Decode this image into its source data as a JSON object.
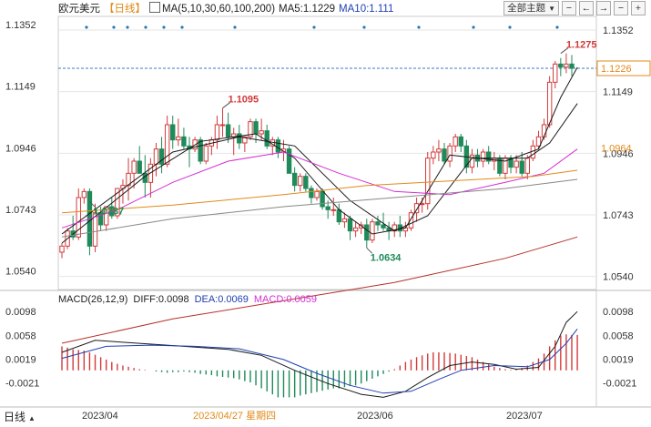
{
  "header": {
    "symbol": "欧元美元",
    "period": "【日线】",
    "ma_params": "MA(5,10,30,60,100,200)",
    "ma5": "MA5:1.1229",
    "ma10": "MA10:1.111",
    "theme_button": "全部主题",
    "colors": {
      "ma5": "#1a1a1a",
      "ma10": "#1a1a1a",
      "ma30": "#d52dd5",
      "ma60": "#e08a1a",
      "ma100": "#888888",
      "ma200": "#b5302a",
      "up": "#d23a3a",
      "down": "#1f8a5a"
    }
  },
  "macd_header": {
    "params": "MACD(26,12,9)",
    "dif": "DIFF:0.0098",
    "dea": "DEA:0.0069",
    "macd": "MACD:0.0059"
  },
  "footer": {
    "period_label": "日线",
    "date_labels": [
      "2023/04",
      "2023/04/27 星期四",
      "2023/06",
      "2023/07"
    ]
  },
  "chart_data": [
    {
      "type": "candlestick",
      "title": "欧元美元 日线",
      "y_ticks": [
        "1.1352",
        "1.1149",
        "1.0946",
        "1.0743",
        "1.0540"
      ],
      "ylim": [
        1.0497,
        1.1397
      ],
      "price_tag_last": "1.1226",
      "price_tag_level": "1.0964",
      "annotations": [
        {
          "text": "1.1095",
          "date": "2023-04-26",
          "value": 1.1095,
          "color": "#d23a3a"
        },
        {
          "text": "1.0787",
          "date": "2023-03-15",
          "value": 1.0787,
          "color": "#1f8a5a"
        },
        {
          "text": "1.0634",
          "date": "2023-05-31",
          "value": 1.0634,
          "color": "#1f8a5a"
        },
        {
          "text": "1.1275",
          "date": "2023-07-18",
          "value": 1.1275,
          "color": "#d23a3a"
        }
      ],
      "ohlc": [
        [
          1.062,
          1.065,
          1.06,
          1.064
        ],
        [
          1.064,
          1.07,
          1.063,
          1.069
        ],
        [
          1.069,
          1.074,
          1.066,
          1.067
        ],
        [
          1.067,
          1.083,
          1.066,
          1.08
        ],
        [
          1.08,
          1.083,
          1.078,
          1.082
        ],
        [
          1.082,
          1.083,
          1.061,
          1.064
        ],
        [
          1.064,
          1.078,
          1.062,
          1.075
        ],
        [
          1.075,
          1.077,
          1.069,
          1.071
        ],
        [
          1.071,
          1.077,
          1.069,
          1.077
        ],
        [
          1.077,
          1.08,
          1.073,
          1.074
        ],
        [
          1.074,
          1.083,
          1.073,
          1.083
        ],
        [
          1.083,
          1.086,
          1.078,
          1.084
        ],
        [
          1.084,
          1.093,
          1.079,
          1.088
        ],
        [
          1.088,
          1.093,
          1.083,
          1.092
        ],
        [
          1.092,
          1.097,
          1.088,
          1.088
        ],
        [
          1.088,
          1.094,
          1.08,
          1.085
        ],
        [
          1.085,
          1.093,
          1.08,
          1.091
        ],
        [
          1.091,
          1.098,
          1.087,
          1.096
        ],
        [
          1.096,
          1.1,
          1.088,
          1.091
        ],
        [
          1.091,
          1.107,
          1.09,
          1.104
        ],
        [
          1.104,
          1.107,
          1.096,
          1.099
        ],
        [
          1.099,
          1.106,
          1.097,
          1.1
        ],
        [
          1.1,
          1.103,
          1.096,
          1.097
        ],
        [
          1.097,
          1.1,
          1.09,
          1.096
        ],
        [
          1.096,
          1.1,
          1.095,
          1.099
        ],
        [
          1.099,
          1.1,
          1.091,
          1.092
        ],
        [
          1.092,
          1.098,
          1.091,
          1.097
        ],
        [
          1.097,
          1.1,
          1.094,
          1.099
        ],
        [
          1.099,
          1.107,
          1.096,
          1.104
        ],
        [
          1.104,
          1.1095,
          1.1,
          1.104
        ],
        [
          1.104,
          1.108,
          1.098,
          1.1
        ],
        [
          1.1,
          1.103,
          1.094,
          1.101
        ],
        [
          1.101,
          1.104,
          1.096,
          1.098
        ],
        [
          1.098,
          1.1,
          1.095,
          1.1
        ],
        [
          1.1,
          1.106,
          1.099,
          1.105
        ],
        [
          1.105,
          1.106,
          1.098,
          1.101
        ],
        [
          1.101,
          1.106,
          1.099,
          1.102
        ],
        [
          1.102,
          1.104,
          1.096,
          1.097
        ],
        [
          1.097,
          1.1,
          1.094,
          1.099
        ],
        [
          1.099,
          1.1,
          1.093,
          1.095
        ],
        [
          1.095,
          1.099,
          1.092,
          1.096
        ],
        [
          1.096,
          1.097,
          1.088,
          1.088
        ],
        [
          1.088,
          1.09,
          1.082,
          1.084
        ],
        [
          1.084,
          1.088,
          1.082,
          1.087
        ],
        [
          1.087,
          1.088,
          1.082,
          1.083
        ],
        [
          1.083,
          1.084,
          1.078,
          1.08
        ],
        [
          1.08,
          1.083,
          1.079,
          1.082
        ],
        [
          1.082,
          1.083,
          1.076,
          1.077
        ],
        [
          1.077,
          1.079,
          1.073,
          1.076
        ],
        [
          1.076,
          1.08,
          1.074,
          1.076
        ],
        [
          1.076,
          1.078,
          1.071,
          1.072
        ],
        [
          1.072,
          1.075,
          1.07,
          1.073
        ],
        [
          1.073,
          1.074,
          1.066,
          1.069
        ],
        [
          1.069,
          1.072,
          1.067,
          1.07
        ],
        [
          1.07,
          1.072,
          1.068,
          1.071
        ],
        [
          1.071,
          1.073,
          1.0634,
          1.066
        ],
        [
          1.066,
          1.073,
          1.065,
          1.072
        ],
        [
          1.072,
          1.074,
          1.069,
          1.071
        ],
        [
          1.071,
          1.075,
          1.069,
          1.07
        ],
        [
          1.07,
          1.072,
          1.066,
          1.069
        ],
        [
          1.069,
          1.072,
          1.067,
          1.071
        ],
        [
          1.071,
          1.074,
          1.067,
          1.069
        ],
        [
          1.069,
          1.072,
          1.067,
          1.07
        ],
        [
          1.07,
          1.076,
          1.069,
          1.075
        ],
        [
          1.075,
          1.08,
          1.072,
          1.078
        ],
        [
          1.078,
          1.08,
          1.075,
          1.078
        ],
        [
          1.078,
          1.095,
          1.076,
          1.093
        ],
        [
          1.093,
          1.097,
          1.091,
          1.095
        ],
        [
          1.095,
          1.099,
          1.092,
          1.096
        ],
        [
          1.096,
          1.098,
          1.091,
          1.092
        ],
        [
          1.092,
          1.098,
          1.09,
          1.097
        ],
        [
          1.097,
          1.101,
          1.095,
          1.1
        ],
        [
          1.1,
          1.101,
          1.095,
          1.097
        ],
        [
          1.097,
          1.099,
          1.088,
          1.09
        ],
        [
          1.09,
          1.096,
          1.088,
          1.094
        ],
        [
          1.094,
          1.096,
          1.09,
          1.092
        ],
        [
          1.092,
          1.096,
          1.09,
          1.095
        ],
        [
          1.095,
          1.097,
          1.091,
          1.092
        ],
        [
          1.092,
          1.095,
          1.089,
          1.093
        ],
        [
          1.093,
          1.094,
          1.087,
          1.088
        ],
        [
          1.088,
          1.094,
          1.086,
          1.093
        ],
        [
          1.093,
          1.094,
          1.088,
          1.09
        ],
        [
          1.09,
          1.094,
          1.088,
          1.092
        ],
        [
          1.092,
          1.095,
          1.087,
          1.088
        ],
        [
          1.088,
          1.094,
          1.086,
          1.093
        ],
        [
          1.093,
          1.099,
          1.092,
          1.097
        ],
        [
          1.097,
          1.102,
          1.096,
          1.1
        ],
        [
          1.1,
          1.106,
          1.099,
          1.104
        ],
        [
          1.104,
          1.12,
          1.103,
          1.118
        ],
        [
          1.118,
          1.125,
          1.116,
          1.124
        ],
        [
          1.124,
          1.126,
          1.12,
          1.123
        ],
        [
          1.123,
          1.1275,
          1.121,
          1.124
        ],
        [
          1.124,
          1.127,
          1.12,
          1.1226
        ]
      ],
      "ma_series": [
        {
          "name": "MA5",
          "color": "#1a1a1a",
          "points": [
            [
              0,
              1.065
            ],
            [
              15,
              1.087
            ],
            [
              25,
              1.0985
            ],
            [
              35,
              1.101
            ],
            [
              42,
              1.093
            ],
            [
              50,
              1.076
            ],
            [
              56,
              1.068
            ],
            [
              62,
              1.07
            ],
            [
              70,
              1.094
            ],
            [
              80,
              1.092
            ],
            [
              86,
              1.096
            ],
            [
              90,
              1.113
            ],
            [
              93,
              1.1229
            ]
          ]
        },
        {
          "name": "MA10",
          "color": "#1a1a1a",
          "points": [
            [
              0,
              1.068
            ],
            [
              20,
              1.095
            ],
            [
              32,
              1.1
            ],
            [
              42,
              1.097
            ],
            [
              52,
              1.079
            ],
            [
              60,
              1.069
            ],
            [
              66,
              1.074
            ],
            [
              74,
              1.093
            ],
            [
              84,
              1.093
            ],
            [
              88,
              1.098
            ],
            [
              93,
              1.111
            ]
          ]
        },
        {
          "name": "MA30",
          "color": "#d52dd5",
          "points": [
            [
              0,
              1.07
            ],
            [
              10,
              1.076
            ],
            [
              20,
              1.085
            ],
            [
              30,
              1.092
            ],
            [
              40,
              1.095
            ],
            [
              50,
              1.088
            ],
            [
              60,
              1.082
            ],
            [
              70,
              1.081
            ],
            [
              80,
              1.085
            ],
            [
              87,
              1.088
            ],
            [
              93,
              1.096
            ]
          ]
        },
        {
          "name": "MA60",
          "color": "#e08a1a",
          "points": [
            [
              0,
              1.075
            ],
            [
              20,
              1.0775
            ],
            [
              40,
              1.081
            ],
            [
              55,
              1.084
            ],
            [
              70,
              1.0855
            ],
            [
              85,
              1.087
            ],
            [
              93,
              1.089
            ]
          ]
        },
        {
          "name": "MA100",
          "color": "#888888",
          "points": [
            [
              0,
              1.067
            ],
            [
              20,
              1.073
            ],
            [
              40,
              1.077
            ],
            [
              60,
              1.08
            ],
            [
              80,
              1.083
            ],
            [
              93,
              1.086
            ]
          ]
        },
        {
          "name": "MA200",
          "color": "#b5302a",
          "points": [
            [
              0,
              1.032
            ],
            [
              20,
              1.04
            ],
            [
              40,
              1.046
            ],
            [
              60,
              1.052
            ],
            [
              80,
              1.06
            ],
            [
              93,
              1.067
            ]
          ]
        }
      ]
    },
    {
      "type": "bar",
      "title": "MACD(26,12,9)",
      "y_ticks": [
        "0.0098",
        "0.0058",
        "0.0019",
        "-0.0021"
      ],
      "ylim": [
        -0.0058,
        0.0112
      ],
      "histogram": [
        0.004,
        0.0038,
        0.0035,
        0.0034,
        0.0033,
        0.003,
        0.0026,
        0.0022,
        0.0018,
        0.0014,
        0.0011,
        0.0008,
        0.0006,
        0.0004,
        0.0002,
        0.0001,
        0.0,
        -0.0002,
        -0.0003,
        -0.0004,
        -0.0003,
        -0.0003,
        -0.0002,
        -0.0003,
        -0.0004,
        -0.0006,
        -0.0007,
        -0.0008,
        -0.001,
        -0.0011,
        -0.0012,
        -0.0013,
        -0.0015,
        -0.0018,
        -0.002,
        -0.0025,
        -0.003,
        -0.0035,
        -0.004,
        -0.0045,
        -0.0045,
        -0.0045,
        -0.0045,
        -0.0042,
        -0.004,
        -0.0038,
        -0.0036,
        -0.0034,
        -0.0032,
        -0.003,
        -0.003,
        -0.0028,
        -0.0026,
        -0.0025,
        -0.0022,
        -0.0018,
        -0.0014,
        -0.001,
        -0.0006,
        -0.0002,
        0.0002,
        0.0008,
        0.0014,
        0.0018,
        0.0022,
        0.0025,
        0.0028,
        0.003,
        0.003,
        0.003,
        0.0029,
        0.0028,
        0.0026,
        0.0024,
        0.0022,
        0.0018,
        0.0014,
        0.001,
        0.0006,
        0.0004,
        0.0002,
        0.0001,
        0.0002,
        0.0004,
        0.0008,
        0.0014,
        0.002,
        0.0028,
        0.004,
        0.005,
        0.0058,
        0.006,
        0.0059,
        0.0059
      ],
      "dif_points": [
        [
          0,
          0.003
        ],
        [
          6,
          0.005
        ],
        [
          14,
          0.0045
        ],
        [
          22,
          0.004
        ],
        [
          30,
          0.0035
        ],
        [
          36,
          0.0025
        ],
        [
          42,
          0.0
        ],
        [
          48,
          -0.0022
        ],
        [
          54,
          -0.004
        ],
        [
          58,
          -0.0045
        ],
        [
          62,
          -0.0035
        ],
        [
          66,
          -0.0012
        ],
        [
          70,
          0.0008
        ],
        [
          74,
          0.0014
        ],
        [
          78,
          0.001
        ],
        [
          82,
          0.0002
        ],
        [
          86,
          0.0005
        ],
        [
          89,
          0.004
        ],
        [
          91,
          0.008
        ],
        [
          93,
          0.0098
        ]
      ],
      "dea_points": [
        [
          0,
          0.002
        ],
        [
          8,
          0.004
        ],
        [
          16,
          0.0042
        ],
        [
          24,
          0.004
        ],
        [
          32,
          0.0036
        ],
        [
          40,
          0.0018
        ],
        [
          46,
          -0.0005
        ],
        [
          52,
          -0.0025
        ],
        [
          58,
          -0.0038
        ],
        [
          63,
          -0.0035
        ],
        [
          68,
          -0.0015
        ],
        [
          72,
          0.0
        ],
        [
          78,
          0.0008
        ],
        [
          84,
          0.0006
        ],
        [
          88,
          0.0018
        ],
        [
          91,
          0.0045
        ],
        [
          93,
          0.0069
        ]
      ]
    }
  ]
}
